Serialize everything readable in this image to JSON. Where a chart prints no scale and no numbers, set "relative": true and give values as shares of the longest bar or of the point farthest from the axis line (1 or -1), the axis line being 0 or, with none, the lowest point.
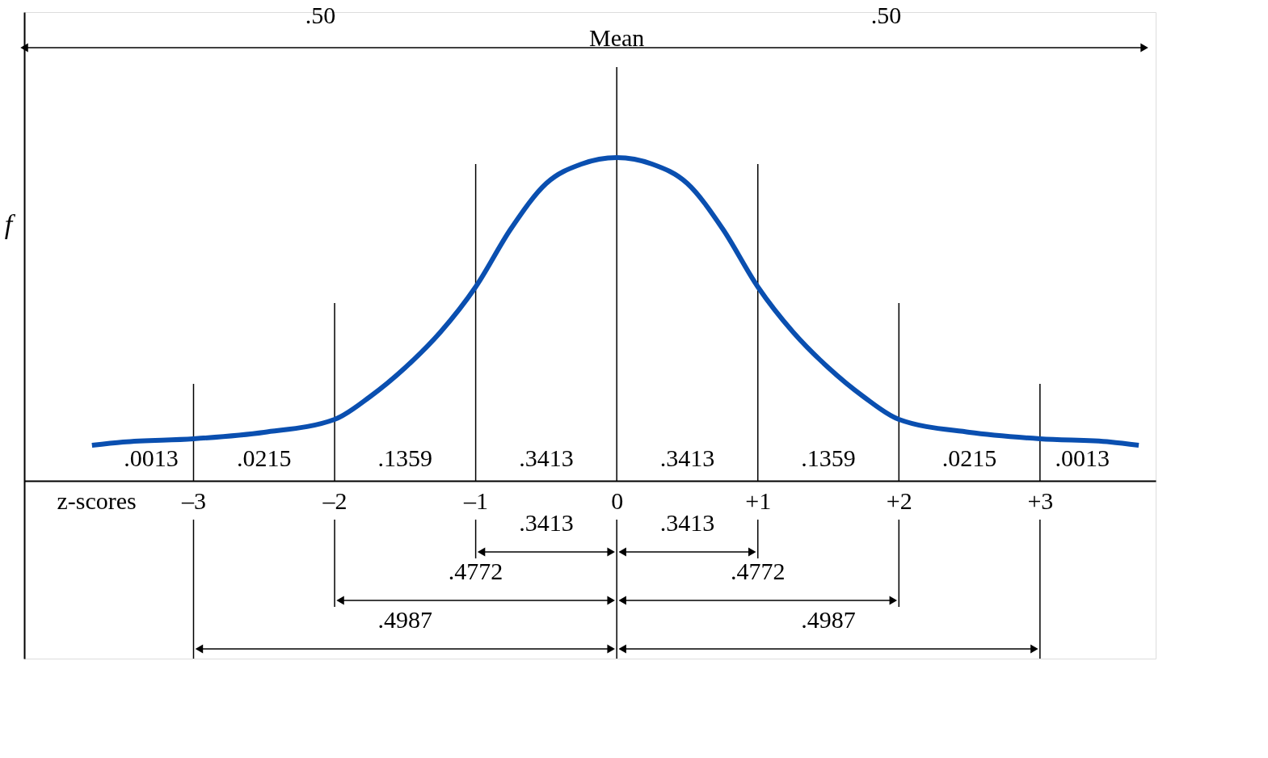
{
  "chart_data": {
    "type": "line",
    "relative": true,
    "xlabel": "z-scores",
    "ylabel": "f",
    "color": "#0a4fb0",
    "x": [
      -3.72,
      -3.5,
      -3,
      -2.5,
      -2,
      -1.75,
      -1.5,
      -1.25,
      -1,
      -0.75,
      -0.5,
      -0.25,
      0,
      0.25,
      0.5,
      0.75,
      1,
      1.25,
      1.5,
      1.75,
      2,
      2.5,
      3,
      3.5,
      3.7
    ],
    "values": [
      0.11,
      0.12,
      0.13,
      0.15,
      0.19,
      0.26,
      0.35,
      0.46,
      0.6,
      0.78,
      0.92,
      0.98,
      1,
      0.98,
      0.92,
      0.78,
      0.6,
      0.46,
      0.35,
      0.26,
      0.19,
      0.15,
      0.13,
      0.12,
      0.11
    ],
    "xlim": [
      -4.2,
      3.82
    ],
    "xticks": [
      {
        "value": -3,
        "label": "–3"
      },
      {
        "value": -2,
        "label": "–2"
      },
      {
        "value": -1,
        "label": "–1"
      },
      {
        "value": 0,
        "label": "0"
      },
      {
        "value": 1,
        "label": "+1"
      },
      {
        "value": 2,
        "label": "+2"
      },
      {
        "value": 3,
        "label": "+3"
      }
    ],
    "ref_lines": [
      {
        "axis": "x",
        "value": -3
      },
      {
        "axis": "x",
        "value": -2
      },
      {
        "axis": "x",
        "value": -1
      },
      {
        "axis": "x",
        "value": 0
      },
      {
        "axis": "x",
        "value": 1
      },
      {
        "axis": "x",
        "value": 2
      },
      {
        "axis": "x",
        "value": 3
      }
    ],
    "annotations": [
      ".50",
      "Mean",
      ".50",
      ".0013",
      ".0215",
      ".1359",
      ".3413",
      ".3413",
      ".1359",
      ".0215",
      ".0013",
      ".3413",
      ".3413",
      ".4772",
      ".4772",
      ".4987",
      ".4987"
    ]
  }
}
